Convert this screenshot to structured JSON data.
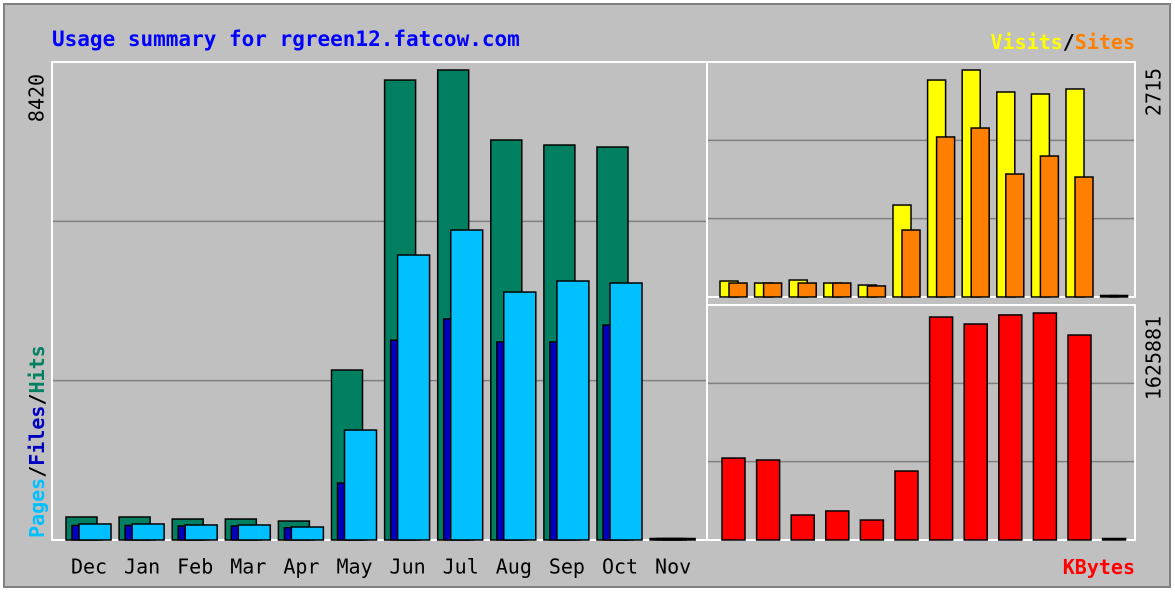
{
  "chart_data": [
    {
      "type": "bar",
      "title": "Usage summary for rgreen12.fatcow.com",
      "separator": "/",
      "categories": [
        "Dec",
        "Jan",
        "Feb",
        "Mar",
        "Apr",
        "May",
        "Jun",
        "Jul",
        "Aug",
        "Sep",
        "Oct",
        "Nov"
      ],
      "ylim": [
        0,
        8420
      ],
      "yticks": [
        8420
      ],
      "series": [
        {
          "name": "Pages",
          "color": "#00c0ff",
          "values": [
            287,
            287,
            269,
            269,
            233,
            1970,
            5105,
            5553,
            4442,
            4640,
            4604,
            0
          ]
        },
        {
          "name": "Files",
          "color": "#0000c0",
          "values": [
            260,
            260,
            250,
            250,
            220,
            1020,
            3580,
            3960,
            3547,
            3547,
            3851,
            0
          ]
        },
        {
          "name": "Hits",
          "color": "#008060",
          "values": [
            412,
            412,
            376,
            376,
            340,
            3045,
            8240,
            8420,
            7166,
            7076,
            7040,
            0
          ]
        }
      ]
    },
    {
      "type": "bar",
      "separator": "/",
      "ylim": [
        0,
        2715
      ],
      "yticks": [
        2715
      ],
      "series": [
        {
          "name": "Visits",
          "color": "#ffff00",
          "values": [
            191,
            167,
            203,
            167,
            143,
            1100,
            2595,
            2715,
            2452,
            2428,
            2488,
            0
          ]
        },
        {
          "name": "Sites",
          "color": "#ff8000",
          "values": [
            167,
            167,
            167,
            167,
            132,
            801,
            1914,
            2021,
            1471,
            1686,
            1435,
            0
          ]
        }
      ]
    },
    {
      "type": "bar",
      "ylim": [
        0,
        1625881
      ],
      "yticks": [
        1625881
      ],
      "series": [
        {
          "name": "KBytes",
          "color": "#ff0000",
          "values": [
            587000,
            573000,
            179000,
            208000,
            143000,
            494000,
            1597000,
            1547000,
            1612000,
            1625881,
            1468000,
            0
          ]
        }
      ]
    }
  ]
}
